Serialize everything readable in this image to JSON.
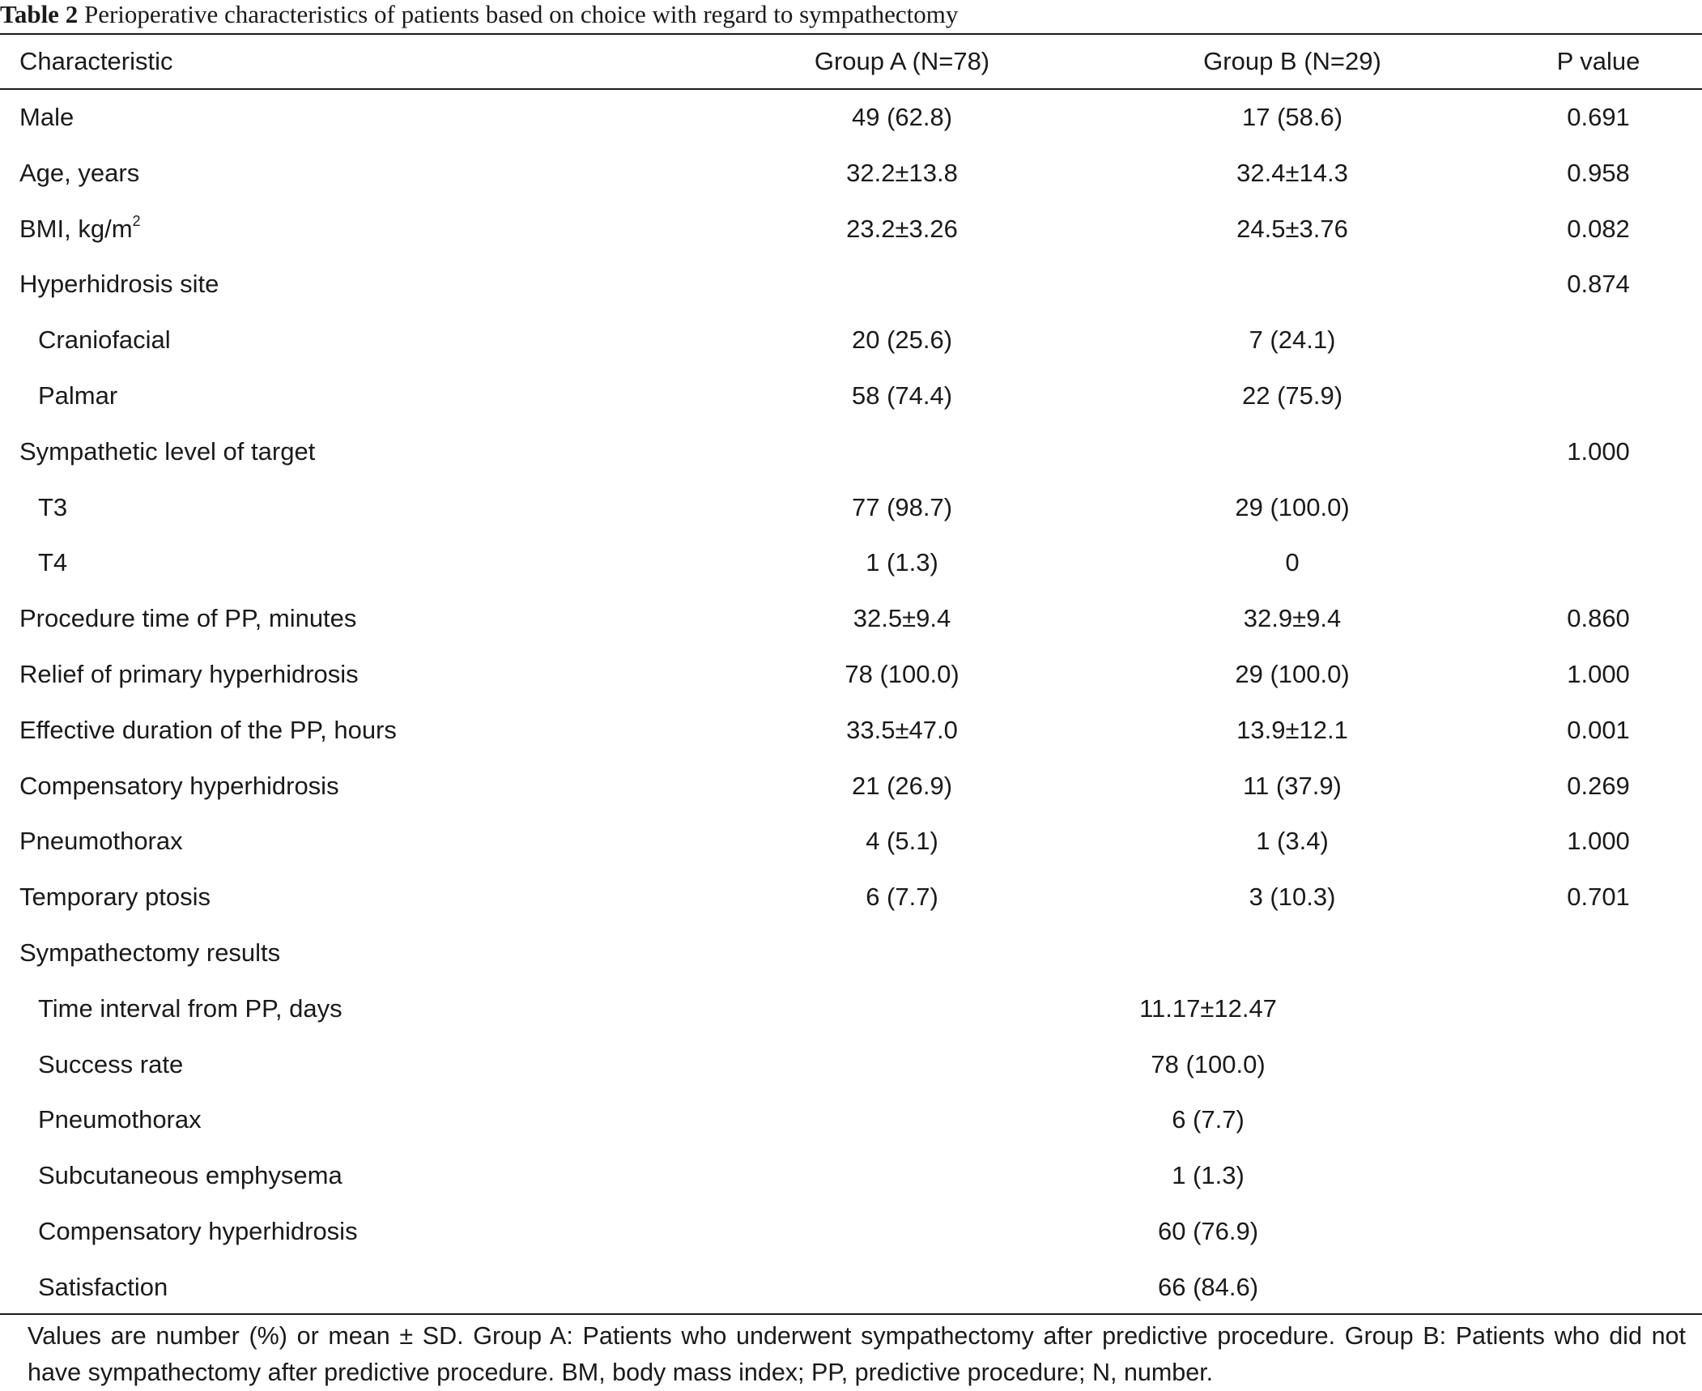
{
  "caption": {
    "label": "Table 2",
    "text": "Perioperative characteristics of patients based on choice with regard to sympathectomy"
  },
  "header": {
    "characteristic": "Characteristic",
    "group_a": "Group A (N=78)",
    "group_b": "Group B (N=29)",
    "p_value": "P value"
  },
  "rows": [
    {
      "label": "Male",
      "a": "49 (62.8)",
      "b": "17 (58.6)",
      "p": "0.691"
    },
    {
      "label": "Age, years",
      "a": "32.2±13.8",
      "b": "32.4±14.3",
      "p": "0.958"
    },
    {
      "label": "BMI, kg/m",
      "sup": "2",
      "a": "23.2±3.26",
      "b": "24.5±3.76",
      "p": "0.082"
    },
    {
      "label": "Hyperhidrosis site",
      "a": "",
      "b": "",
      "p": "0.874"
    },
    {
      "label": "Craniofacial",
      "a": "20 (25.6)",
      "b": "7 (24.1)",
      "p": ""
    },
    {
      "label": "Palmar",
      "a": "58 (74.4)",
      "b": "22 (75.9)",
      "p": ""
    },
    {
      "label": "Sympathetic level of target",
      "a": "",
      "b": "",
      "p": "1.000"
    },
    {
      "label": "T3",
      "a": "77 (98.7)",
      "b": "29 (100.0)",
      "p": ""
    },
    {
      "label": "T4",
      "a": "1 (1.3)",
      "b": "0",
      "p": ""
    },
    {
      "label": "Procedure time of PP, minutes",
      "a": "32.5±9.4",
      "b": "32.9±9.4",
      "p": "0.860"
    },
    {
      "label": "Relief of primary hyperhidrosis",
      "a": "78 (100.0)",
      "b": "29 (100.0)",
      "p": "1.000"
    },
    {
      "label": "Effective duration of the PP, hours",
      "a": "33.5±47.0",
      "b": "13.9±12.1",
      "p": "0.001"
    },
    {
      "label": "Compensatory hyperhidrosis",
      "a": "21 (26.9)",
      "b": "11 (37.9)",
      "p": "0.269"
    },
    {
      "label": "Pneumothorax",
      "a": "4 (5.1)",
      "b": "1 (3.4)",
      "p": "1.000"
    },
    {
      "label": "Temporary ptosis",
      "a": "6 (7.7)",
      "b": "3 (10.3)",
      "p": "0.701"
    },
    {
      "label": "Sympathectomy results",
      "merged": ""
    },
    {
      "label": "Time interval from PP, days",
      "merged": "11.17±12.47"
    },
    {
      "label": "Success rate",
      "merged": "78 (100.0)"
    },
    {
      "label": "Pneumothorax",
      "merged": "6 (7.7)"
    },
    {
      "label": "Subcutaneous emphysema",
      "merged": "1 (1.3)"
    },
    {
      "label": "Compensatory hyperhidrosis",
      "merged": "60 (76.9)"
    },
    {
      "label": "Satisfaction",
      "merged": "66 (84.6)"
    }
  ],
  "footnote": "Values are number (%) or mean ± SD. Group A: Patients who underwent sympathectomy after predictive procedure. Group B: Patients who did not have sympathectomy after predictive procedure. BM, body mass index; PP, predictive procedure; N, number."
}
